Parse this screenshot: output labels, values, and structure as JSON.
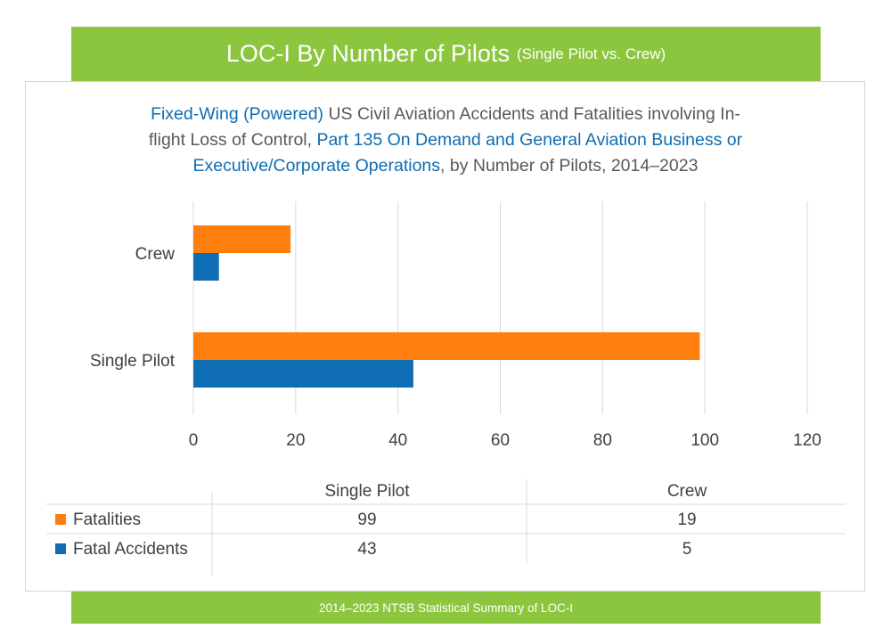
{
  "header": {
    "title": "LOC-I By Number of Pilots",
    "subtitle": "(Single Pilot vs. Crew)"
  },
  "description": {
    "line1_part1": "Fixed-Wing (Powered)",
    "line1_part2": " US Civil Aviation Accidents and Fatalities involving In-",
    "line2_part1": "flight Loss of Control, ",
    "line2_part2": "Part 135 On Demand and General Aviation Business or",
    "line3_part1": "Executive/Corporate Operations",
    "line3_part2": ", by Number of Pilots, 2014–2023"
  },
  "footer": {
    "text": "2014–2023 NTSB Statistical Summary of LOC-I"
  },
  "colors": {
    "green": "#8cc63f",
    "orange": "#ff7f0e",
    "blue": "#0e6db3",
    "grid": "#d9d9d9",
    "text": "#404040"
  },
  "chart_data": {
    "type": "bar",
    "orientation": "horizontal",
    "title": "LOC-I By Number of Pilots",
    "categories": [
      "Crew",
      "Single Pilot"
    ],
    "series": [
      {
        "name": "Fatalities",
        "color": "#ff7f0e",
        "values": [
          19,
          99
        ]
      },
      {
        "name": "Fatal Accidents",
        "color": "#0e6db3",
        "values": [
          5,
          43
        ]
      }
    ],
    "xlim": [
      0,
      120
    ],
    "xticks": [
      0,
      20,
      40,
      60,
      80,
      100,
      120
    ],
    "grid": true,
    "legend": "data-table",
    "data_table": {
      "columns": [
        "Single Pilot",
        "Crew"
      ],
      "rows": [
        {
          "label": "Fatalities",
          "values": [
            "99",
            "19"
          ]
        },
        {
          "label": "Fatal Accidents",
          "values": [
            "43",
            "5"
          ]
        }
      ]
    }
  }
}
